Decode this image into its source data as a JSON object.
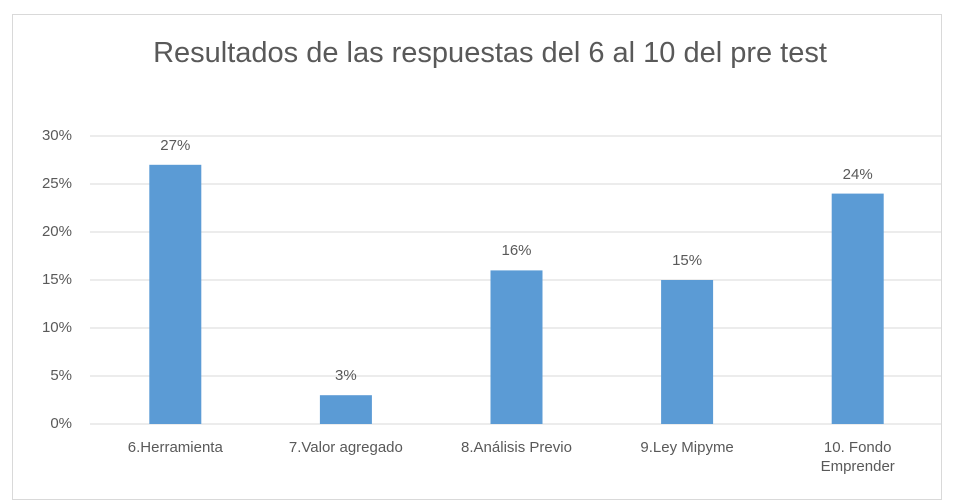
{
  "chart_data": {
    "type": "bar",
    "title": "Resultados de las respuestas del 6 al 10 del pre test",
    "categories": [
      "6.Herramienta",
      "7.Valor agregado",
      "8.Análisis Previo",
      "9.Ley Mipyme",
      "10. Fondo Emprender"
    ],
    "values": [
      27,
      3,
      16,
      15,
      24
    ],
    "value_labels": [
      "27%",
      "3%",
      "16%",
      "15%",
      "24%"
    ],
    "color": "#5b9bd5",
    "ylim": [
      0,
      30
    ],
    "yticks": [
      {
        "value": 0,
        "label": "0%"
      },
      {
        "value": 5,
        "label": "5%"
      },
      {
        "value": 10,
        "label": "10%"
      },
      {
        "value": 15,
        "label": "15%"
      },
      {
        "value": 20,
        "label": "20%"
      },
      {
        "value": 25,
        "label": "25%"
      },
      {
        "value": 30,
        "label": "30%"
      }
    ],
    "grid": true
  }
}
